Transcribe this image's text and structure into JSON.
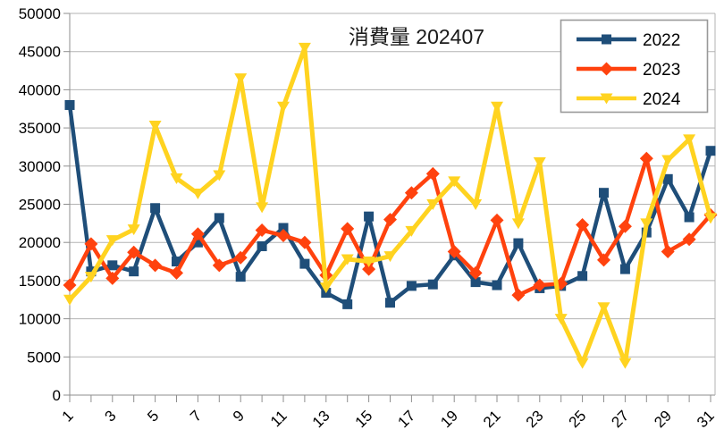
{
  "chart_data": {
    "type": "line",
    "title": "消費量 202407",
    "x": [
      1,
      2,
      3,
      4,
      5,
      6,
      7,
      8,
      9,
      10,
      11,
      12,
      13,
      14,
      15,
      16,
      17,
      18,
      19,
      20,
      21,
      22,
      23,
      24,
      25,
      26,
      27,
      28,
      29,
      30,
      31
    ],
    "x_tick_labels": [
      "1",
      "3",
      "5",
      "7",
      "9",
      "11",
      "13",
      "15",
      "17",
      "19",
      "21",
      "23",
      "25",
      "27",
      "29",
      "31"
    ],
    "x_tick_label_days": [
      1,
      3,
      5,
      7,
      9,
      11,
      13,
      15,
      17,
      19,
      21,
      23,
      25,
      27,
      29,
      31
    ],
    "y_ticks": [
      0,
      5000,
      10000,
      15000,
      20000,
      25000,
      30000,
      35000,
      40000,
      45000,
      50000
    ],
    "y_tick_labels": [
      "0",
      "5000",
      "10000",
      "15000",
      "20000",
      "25000",
      "30000",
      "35000",
      "40000",
      "45000",
      "50000"
    ],
    "ylim": [
      0,
      50000
    ],
    "grid": "horizontal",
    "legend_position": "top-right",
    "series": [
      {
        "name": "2022",
        "color": "#1F4E79",
        "marker": "square",
        "values": [
          38000,
          16200,
          17000,
          16200,
          24500,
          17500,
          20000,
          23200,
          15500,
          19500,
          21900,
          17200,
          13400,
          11900,
          23400,
          12100,
          14300,
          14500,
          18300,
          14800,
          14400,
          19900,
          14000,
          14300,
          15600,
          26500,
          16500,
          21300,
          28300,
          23300,
          32000
        ]
      },
      {
        "name": "2023",
        "color": "#FF420E",
        "marker": "diamond",
        "values": [
          14400,
          19800,
          15300,
          18700,
          17000,
          16000,
          21100,
          17000,
          18000,
          21600,
          20900,
          20000,
          15700,
          21800,
          16500,
          23000,
          26500,
          29000,
          18800,
          16000,
          22900,
          13100,
          14400,
          14600,
          22300,
          17700,
          22100,
          31000,
          18800,
          20400,
          23600
        ]
      },
      {
        "name": "2024",
        "color": "#FFD320",
        "marker": "triangle-down",
        "values": [
          12500,
          15500,
          20300,
          21700,
          35300,
          28400,
          26400,
          28800,
          41500,
          24600,
          37800,
          45500,
          14100,
          17800,
          17500,
          18200,
          21500,
          25000,
          28000,
          25000,
          37800,
          22500,
          30500,
          10000,
          4200,
          11500,
          4200,
          22500,
          30800,
          33500,
          23200
        ]
      }
    ],
    "colors": {
      "background": "#ffffff",
      "gridline": "#b3b3b3",
      "axis": "#8e8e8e",
      "tick": "#8e8e8e",
      "label_text": "#000000",
      "title_text": "#1a1a1a",
      "legend_border": "#999999",
      "legend_background": "#ffffff"
    }
  }
}
